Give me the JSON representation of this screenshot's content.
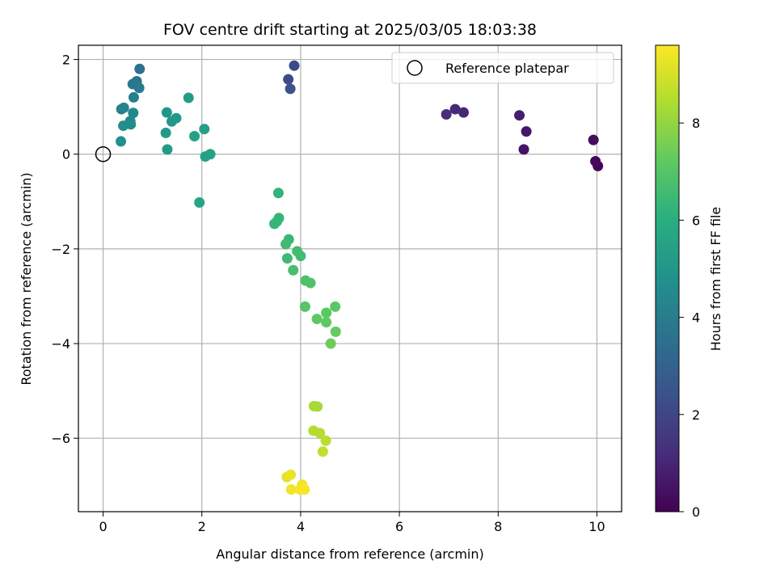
{
  "chart_data": {
    "type": "scatter",
    "title": "FOV centre drift starting at 2025/03/05 18:03:38",
    "xlabel": "Angular distance from reference (arcmin)",
    "ylabel": "Rotation from reference (arcmin)",
    "xlim": [
      -0.5,
      10.5
    ],
    "ylim": [
      -7.55,
      2.3
    ],
    "xticks": [
      0,
      2,
      4,
      6,
      8,
      10
    ],
    "yticks": [
      2,
      0,
      -2,
      -4,
      -6
    ],
    "xtick_labels": [
      "0",
      "2",
      "4",
      "6",
      "8",
      "10"
    ],
    "ytick_labels": [
      "2",
      "0",
      "−2",
      "−4",
      "−6"
    ],
    "grid": true,
    "colormap": "viridis",
    "colorbar": {
      "label": "Hours from first FF file",
      "range": [
        0,
        9.6
      ],
      "ticks": [
        0,
        2,
        4,
        6,
        8
      ],
      "tick_labels": [
        "0",
        "2",
        "4",
        "6",
        "8"
      ]
    },
    "legend": {
      "position": "top-right",
      "entries": [
        "Reference platepar"
      ]
    },
    "reference_point": {
      "x": 0,
      "y": 0
    },
    "points": [
      {
        "x": 10.02,
        "y": -0.25,
        "t": 0.1
      },
      {
        "x": 9.97,
        "y": -0.15,
        "t": 0.2
      },
      {
        "x": 9.93,
        "y": 0.3,
        "t": 0.3
      },
      {
        "x": 8.52,
        "y": 0.1,
        "t": 0.5
      },
      {
        "x": 8.57,
        "y": 0.48,
        "t": 0.6
      },
      {
        "x": 8.43,
        "y": 0.82,
        "t": 0.8
      },
      {
        "x": 7.3,
        "y": 0.88,
        "t": 1.0
      },
      {
        "x": 7.13,
        "y": 0.95,
        "t": 1.1
      },
      {
        "x": 6.95,
        "y": 0.84,
        "t": 1.3
      },
      {
        "x": 3.87,
        "y": 1.87,
        "t": 2.1
      },
      {
        "x": 3.75,
        "y": 1.58,
        "t": 2.2
      },
      {
        "x": 3.79,
        "y": 1.38,
        "t": 2.4
      },
      {
        "x": 0.74,
        "y": 1.8,
        "t": 3.6
      },
      {
        "x": 0.68,
        "y": 1.54,
        "t": 3.7
      },
      {
        "x": 0.6,
        "y": 1.48,
        "t": 3.8
      },
      {
        "x": 0.73,
        "y": 1.4,
        "t": 3.9
      },
      {
        "x": 0.62,
        "y": 1.2,
        "t": 4.1
      },
      {
        "x": 0.37,
        "y": 0.95,
        "t": 4.2
      },
      {
        "x": 0.42,
        "y": 0.98,
        "t": 4.3
      },
      {
        "x": 0.61,
        "y": 0.87,
        "t": 4.4
      },
      {
        "x": 0.55,
        "y": 0.7,
        "t": 4.5
      },
      {
        "x": 0.41,
        "y": 0.6,
        "t": 4.6
      },
      {
        "x": 0.56,
        "y": 0.63,
        "t": 4.7
      },
      {
        "x": 0.36,
        "y": 0.27,
        "t": 4.8
      },
      {
        "x": 1.29,
        "y": 0.88,
        "t": 5.0
      },
      {
        "x": 1.48,
        "y": 0.76,
        "t": 5.1
      },
      {
        "x": 1.39,
        "y": 0.69,
        "t": 5.1
      },
      {
        "x": 1.27,
        "y": 0.45,
        "t": 5.2
      },
      {
        "x": 1.3,
        "y": 0.1,
        "t": 5.2
      },
      {
        "x": 1.73,
        "y": 1.19,
        "t": 5.3
      },
      {
        "x": 2.05,
        "y": 0.53,
        "t": 5.4
      },
      {
        "x": 1.85,
        "y": 0.38,
        "t": 5.4
      },
      {
        "x": 2.17,
        "y": 0.0,
        "t": 5.5
      },
      {
        "x": 2.07,
        "y": -0.05,
        "t": 5.5
      },
      {
        "x": 1.95,
        "y": -1.02,
        "t": 5.6
      },
      {
        "x": 3.55,
        "y": -0.82,
        "t": 6.2
      },
      {
        "x": 3.56,
        "y": -1.35,
        "t": 6.3
      },
      {
        "x": 3.52,
        "y": -1.42,
        "t": 6.3
      },
      {
        "x": 3.47,
        "y": -1.47,
        "t": 6.3
      },
      {
        "x": 3.76,
        "y": -1.8,
        "t": 6.4
      },
      {
        "x": 3.7,
        "y": -1.9,
        "t": 6.5
      },
      {
        "x": 3.73,
        "y": -2.2,
        "t": 6.5
      },
      {
        "x": 3.93,
        "y": -2.05,
        "t": 6.6
      },
      {
        "x": 4.0,
        "y": -2.15,
        "t": 6.6
      },
      {
        "x": 3.85,
        "y": -2.45,
        "t": 6.7
      },
      {
        "x": 4.1,
        "y": -2.67,
        "t": 6.8
      },
      {
        "x": 4.2,
        "y": -2.72,
        "t": 6.9
      },
      {
        "x": 4.09,
        "y": -3.22,
        "t": 7.0
      },
      {
        "x": 4.7,
        "y": -3.22,
        "t": 7.1
      },
      {
        "x": 4.52,
        "y": -3.35,
        "t": 7.1
      },
      {
        "x": 4.33,
        "y": -3.48,
        "t": 7.2
      },
      {
        "x": 4.52,
        "y": -3.55,
        "t": 7.2
      },
      {
        "x": 4.71,
        "y": -3.75,
        "t": 7.3
      },
      {
        "x": 4.61,
        "y": -4.0,
        "t": 7.4
      },
      {
        "x": 4.27,
        "y": -5.32,
        "t": 8.3
      },
      {
        "x": 4.34,
        "y": -5.33,
        "t": 8.3
      },
      {
        "x": 4.26,
        "y": -5.84,
        "t": 8.5
      },
      {
        "x": 4.39,
        "y": -5.89,
        "t": 8.5
      },
      {
        "x": 4.51,
        "y": -6.05,
        "t": 8.6
      },
      {
        "x": 4.45,
        "y": -6.28,
        "t": 8.7
      },
      {
        "x": 3.72,
        "y": -6.82,
        "t": 9.2
      },
      {
        "x": 3.8,
        "y": -6.77,
        "t": 9.3
      },
      {
        "x": 3.81,
        "y": -7.08,
        "t": 9.4
      },
      {
        "x": 4.03,
        "y": -6.98,
        "t": 9.4
      },
      {
        "x": 3.99,
        "y": -7.08,
        "t": 9.5
      },
      {
        "x": 4.08,
        "y": -7.08,
        "t": 9.5
      }
    ]
  }
}
